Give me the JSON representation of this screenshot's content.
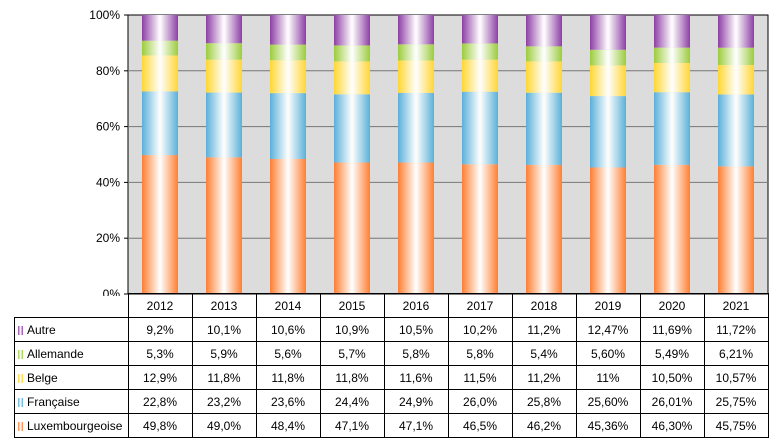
{
  "chart_data": {
    "type": "bar",
    "stacked": true,
    "percent": true,
    "categories": [
      "2012",
      "2013",
      "2014",
      "2015",
      "2016",
      "2017",
      "2018",
      "2019",
      "2020",
      "2021"
    ],
    "yticks": [
      "0%",
      "20%",
      "40%",
      "60%",
      "80%",
      "100%"
    ],
    "ylim": [
      0,
      100
    ],
    "grid": true,
    "legend_position": "table-left",
    "series": [
      {
        "name": "Luxembourgeoise",
        "color": "#ff7f32",
        "values": [
          49.8,
          49.0,
          48.4,
          47.1,
          47.1,
          46.5,
          46.2,
          45.36,
          46.3,
          45.75
        ],
        "labels": [
          "49,8%",
          "49,0%",
          "48,4%",
          "47,1%",
          "47,1%",
          "46,5%",
          "46,2%",
          "45,36%",
          "46,30%",
          "45,75%"
        ]
      },
      {
        "name": "Française",
        "color": "#5ab0d8",
        "values": [
          22.8,
          23.2,
          23.6,
          24.4,
          24.9,
          26.0,
          25.8,
          25.6,
          26.01,
          25.75
        ],
        "labels": [
          "22,8%",
          "23,2%",
          "23,6%",
          "24,4%",
          "24,9%",
          "26,0%",
          "25,8%",
          "25,60%",
          "26,01%",
          "25,75%"
        ]
      },
      {
        "name": "Belge",
        "color": "#ffd633",
        "values": [
          12.9,
          11.8,
          11.8,
          11.8,
          11.6,
          11.5,
          11.2,
          11,
          10.5,
          10.57
        ],
        "labels": [
          "12,9%",
          "11,8%",
          "11,8%",
          "11,8%",
          "11,6%",
          "11,5%",
          "11,2%",
          "11%",
          "10,50%",
          "10,57%"
        ]
      },
      {
        "name": "Allemande",
        "color": "#9ccc3c",
        "values": [
          5.3,
          5.9,
          5.6,
          5.7,
          5.8,
          5.8,
          5.4,
          5.6,
          5.49,
          6.21
        ],
        "labels": [
          "5,3%",
          "5,9%",
          "5,6%",
          "5,7%",
          "5,8%",
          "5,8%",
          "5,4%",
          "5,60%",
          "5,49%",
          "6,21%"
        ]
      },
      {
        "name": "Autre",
        "color": "#8e3fa4",
        "values": [
          9.2,
          10.1,
          10.6,
          10.9,
          10.5,
          10.2,
          11.2,
          12.47,
          11.69,
          11.72
        ],
        "labels": [
          "9,2%",
          "10,1%",
          "10,6%",
          "10,9%",
          "10,5%",
          "10,2%",
          "11,2%",
          "12,47%",
          "11,69%",
          "11,72%"
        ]
      }
    ],
    "table_row_order": [
      "Autre",
      "Allemande",
      "Belge",
      "Française",
      "Luxembourgeoise"
    ]
  }
}
